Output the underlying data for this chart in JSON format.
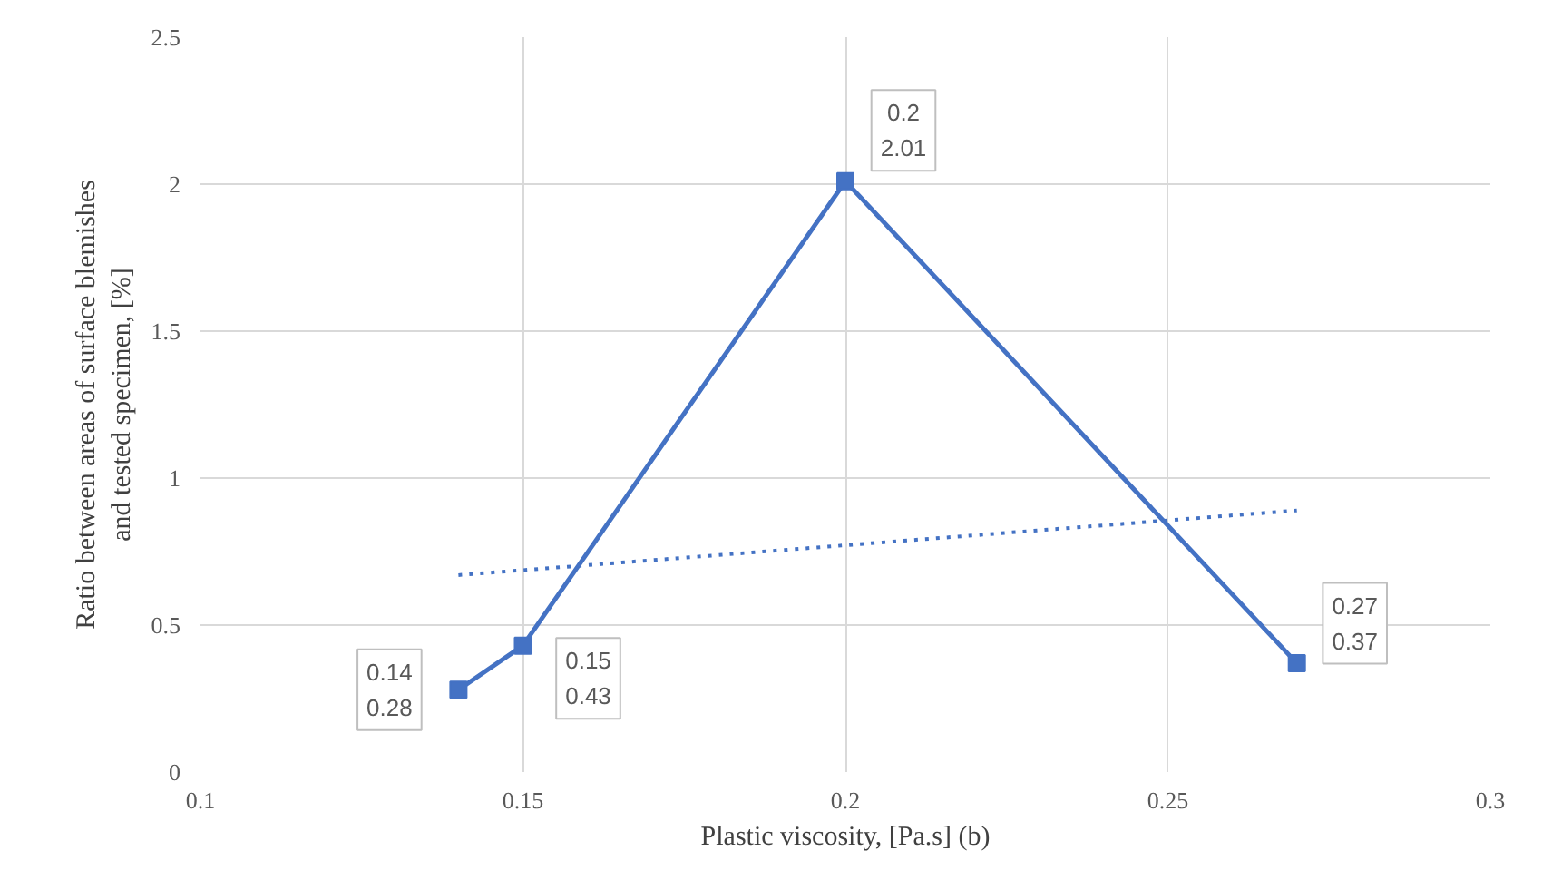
{
  "chart_data": {
    "type": "line",
    "xlabel": "Plastic viscosity, [Pa.s] (b)",
    "ylabel": "Ratio between areas of surface blemishes\nand tested specimen, [%]",
    "x": [
      0.14,
      0.15,
      0.2,
      0.27
    ],
    "series": [
      {
        "color": "#4472c4",
        "values": [
          0.28,
          0.43,
          2.01,
          0.37
        ],
        "marker": "square",
        "line_style": "solid",
        "value_labels": [
          "0.14\n0.28",
          "0.15\n0.43",
          "0.2\n2.01",
          "0.27\n0.37"
        ]
      },
      {
        "type": "line",
        "color": "#4472c4",
        "x": [
          0.14,
          0.27
        ],
        "values": [
          0.67,
          0.89
        ],
        "marker": "none",
        "line_style": "dotted"
      }
    ],
    "xlim": [
      0.1,
      0.3
    ],
    "xticks": [
      0.1,
      0.15,
      0.2,
      0.25,
      0.3
    ],
    "ylim": [
      0,
      2.5
    ],
    "yticks": [
      0,
      0.5,
      1,
      1.5,
      2,
      2.5
    ],
    "grid": true
  }
}
